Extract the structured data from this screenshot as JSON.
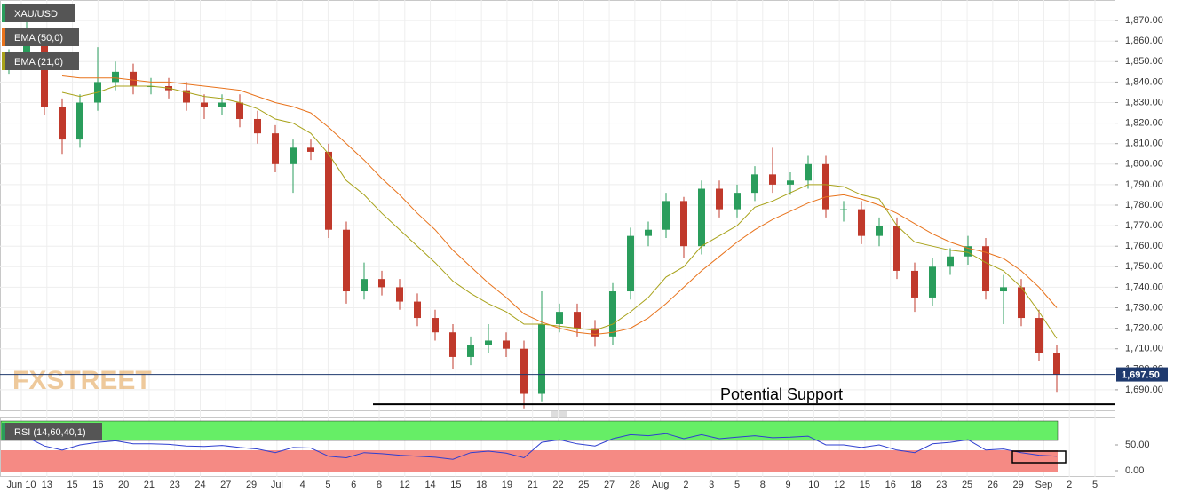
{
  "chart_data": {
    "type": "candlestick",
    "symbol": "XAU/USD",
    "watermark": "FXSTREET",
    "up_color": "#2a9d5c",
    "down_color": "#c0392b",
    "ylim": [
      1680,
      1880
    ],
    "yticks": [
      {
        "value": 1690,
        "label": "1,690.00"
      },
      {
        "value": 1700,
        "label": "1,700.00"
      },
      {
        "value": 1710,
        "label": "1,710.00"
      },
      {
        "value": 1720,
        "label": "1,720.00"
      },
      {
        "value": 1730,
        "label": "1,730.00"
      },
      {
        "value": 1740,
        "label": "1,740.00"
      },
      {
        "value": 1750,
        "label": "1,750.00"
      },
      {
        "value": 1760,
        "label": "1,760.00"
      },
      {
        "value": 1770,
        "label": "1,770.00"
      },
      {
        "value": 1780,
        "label": "1,780.00"
      },
      {
        "value": 1790,
        "label": "1,790.00"
      },
      {
        "value": 1800,
        "label": "1,800.00"
      },
      {
        "value": 1810,
        "label": "1,810.00"
      },
      {
        "value": 1820,
        "label": "1,820.00"
      },
      {
        "value": 1830,
        "label": "1,830.00"
      },
      {
        "value": 1840,
        "label": "1,840.00"
      },
      {
        "value": 1850,
        "label": "1,850.00"
      },
      {
        "value": 1860,
        "label": "1,860.00"
      },
      {
        "value": 1870,
        "label": "1,870.00"
      }
    ],
    "x_labels": [
      "Jun 10",
      "13",
      "15",
      "16",
      "20",
      "21",
      "23",
      "24",
      "27",
      "29",
      "Jul",
      "4",
      "5",
      "6",
      "8",
      "12",
      "14",
      "15",
      "18",
      "19",
      "21",
      "22",
      "25",
      "27",
      "28",
      "Aug",
      "2",
      "3",
      "5",
      "8",
      "9",
      "10",
      "12",
      "15",
      "16",
      "18",
      "23",
      "25",
      "26",
      "29",
      "Sep",
      "2",
      "5"
    ],
    "open": [
      1848,
      1852,
      1858,
      1828,
      1812,
      1830,
      1840,
      1845,
      1838,
      1838,
      1836,
      1830,
      1828,
      1830,
      1822,
      1815,
      1800,
      1808,
      1806,
      1768,
      1738,
      1744,
      1740,
      1733,
      1725,
      1718,
      1706,
      1712,
      1714,
      1710,
      1688,
      1722,
      1728,
      1720,
      1716,
      1738,
      1765,
      1768,
      1782,
      1760,
      1788,
      1778,
      1786,
      1795,
      1790,
      1792,
      1800,
      1778,
      1778,
      1765,
      1770,
      1748,
      1735,
      1750,
      1755,
      1760,
      1738,
      1740,
      1725,
      1708
    ],
    "high": [
      1856,
      1877,
      1862,
      1832,
      1834,
      1857,
      1850,
      1849,
      1842,
      1842,
      1840,
      1834,
      1834,
      1834,
      1826,
      1819,
      1812,
      1812,
      1810,
      1772,
      1752,
      1748,
      1744,
      1737,
      1729,
      1722,
      1716,
      1722,
      1718,
      1714,
      1738,
      1732,
      1732,
      1724,
      1742,
      1769,
      1772,
      1786,
      1784,
      1792,
      1792,
      1790,
      1799,
      1808,
      1796,
      1804,
      1804,
      1782,
      1782,
      1774,
      1774,
      1752,
      1754,
      1759,
      1765,
      1764,
      1746,
      1744,
      1729,
      1712
    ],
    "low": [
      1844,
      1848,
      1824,
      1805,
      1808,
      1826,
      1836,
      1834,
      1834,
      1832,
      1826,
      1822,
      1824,
      1818,
      1810,
      1796,
      1786,
      1802,
      1764,
      1732,
      1734,
      1736,
      1729,
      1721,
      1714,
      1700,
      1702,
      1708,
      1706,
      1681,
      1684,
      1718,
      1716,
      1711,
      1712,
      1734,
      1760,
      1764,
      1754,
      1756,
      1774,
      1774,
      1782,
      1786,
      1785,
      1788,
      1774,
      1772,
      1761,
      1760,
      1744,
      1728,
      1731,
      1746,
      1751,
      1734,
      1722,
      1721,
      1704,
      1689
    ],
    "close": [
      1852,
      1858,
      1828,
      1812,
      1830,
      1840,
      1845,
      1838,
      1838,
      1836,
      1830,
      1828,
      1830,
      1822,
      1815,
      1800,
      1808,
      1806,
      1768,
      1738,
      1744,
      1740,
      1733,
      1725,
      1718,
      1706,
      1712,
      1714,
      1710,
      1688,
      1722,
      1728,
      1720,
      1716,
      1738,
      1765,
      1768,
      1782,
      1760,
      1788,
      1778,
      1786,
      1795,
      1790,
      1792,
      1800,
      1778,
      1778,
      1765,
      1770,
      1748,
      1735,
      1750,
      1755,
      1760,
      1738,
      1740,
      1725,
      1708,
      1697.5
    ],
    "series": [
      {
        "name": "EMA (50,0)",
        "color": "#e8731c",
        "values": [
          null,
          null,
          null,
          1843,
          1842,
          1842,
          1842,
          1841,
          1840,
          1840,
          1839,
          1838,
          1837,
          1836,
          1833,
          1830,
          1828,
          1825,
          1818,
          1810,
          1802,
          1793,
          1785,
          1776,
          1768,
          1758,
          1750,
          1742,
          1735,
          1727,
          1723,
          1720,
          1718,
          1717,
          1718,
          1720,
          1725,
          1732,
          1740,
          1748,
          1755,
          1762,
          1768,
          1773,
          1777,
          1781,
          1784,
          1785,
          1783,
          1780,
          1776,
          1771,
          1766,
          1762,
          1759,
          1757,
          1754,
          1748,
          1740,
          1730
        ]
      },
      {
        "name": "EMA (21,0)",
        "color": "#a8a21a",
        "values": [
          null,
          null,
          null,
          1835,
          1833,
          1835,
          1838,
          1838,
          1838,
          1837,
          1835,
          1833,
          1832,
          1830,
          1827,
          1822,
          1820,
          1815,
          1805,
          1792,
          1785,
          1776,
          1768,
          1760,
          1752,
          1743,
          1737,
          1732,
          1728,
          1722,
          1722,
          1721,
          1720,
          1719,
          1722,
          1728,
          1735,
          1745,
          1750,
          1760,
          1765,
          1770,
          1779,
          1782,
          1786,
          1790,
          1790,
          1789,
          1785,
          1783,
          1770,
          1762,
          1760,
          1758,
          1757,
          1752,
          1748,
          1740,
          1728,
          1715
        ]
      }
    ],
    "last_price": {
      "value": 1697.5,
      "label": "1,697.50"
    },
    "annotation": {
      "text": "Potential Support",
      "level": 1683
    },
    "rsi": {
      "name": "RSI (14,60,40,1)",
      "color": "#2f3fd0",
      "ylim": [
        0,
        100
      ],
      "yticks": [
        {
          "value": 0,
          "label": "0.00"
        },
        {
          "value": 50,
          "label": "50.00"
        }
      ],
      "values": [
        60,
        65,
        48,
        40,
        50,
        55,
        58,
        52,
        52,
        51,
        48,
        47,
        49,
        45,
        42,
        35,
        45,
        44,
        28,
        25,
        35,
        33,
        30,
        28,
        26,
        22,
        35,
        38,
        34,
        25,
        55,
        60,
        52,
        48,
        62,
        70,
        68,
        72,
        62,
        70,
        62,
        65,
        68,
        64,
        65,
        67,
        50,
        50,
        45,
        50,
        40,
        35,
        52,
        55,
        60,
        40,
        42,
        35,
        30,
        28
      ]
    }
  }
}
